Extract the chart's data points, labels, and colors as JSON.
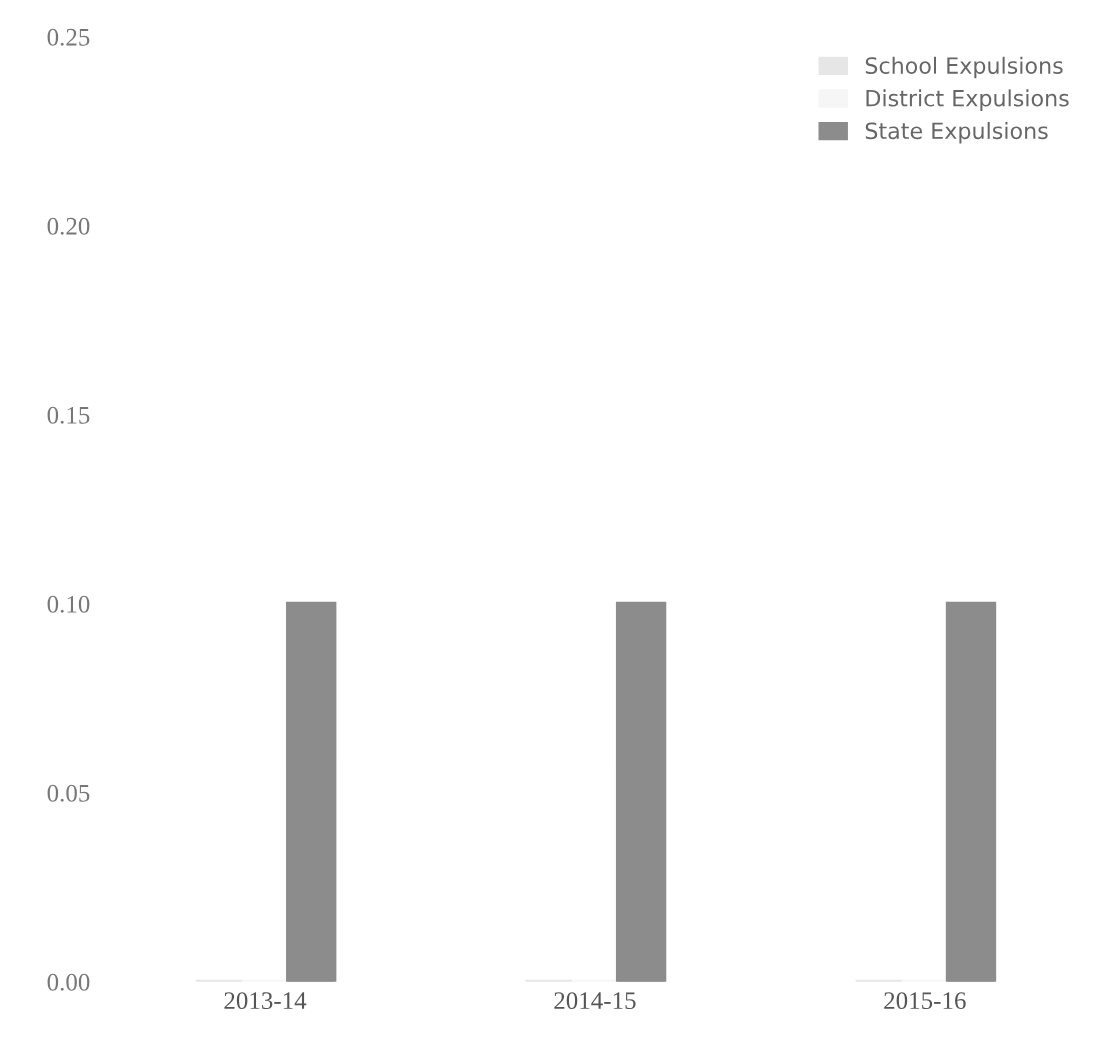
{
  "chart_data": {
    "type": "bar",
    "categories": [
      "2013-14",
      "2014-15",
      "2015-16"
    ],
    "series": [
      {
        "name": "School Expulsions",
        "color": "#e6e6e6",
        "values": [
          0,
          0,
          0
        ]
      },
      {
        "name": "District Expulsions",
        "color": "#f6f6f6",
        "values": [
          0,
          0,
          0
        ]
      },
      {
        "name": "State Expulsions",
        "color": "#8c8c8c",
        "values": [
          0.1,
          0.1,
          0.1
        ]
      }
    ],
    "ylim": [
      0,
      0.25
    ],
    "yticks": [
      {
        "value": 0,
        "label": "0.00"
      },
      0.05,
      {
        "value": 0.1,
        "label": "0.10"
      },
      0.15,
      {
        "value": 0.2,
        "label": "0.20"
      },
      0.25
    ],
    "grid": false,
    "legend": "top right"
  }
}
